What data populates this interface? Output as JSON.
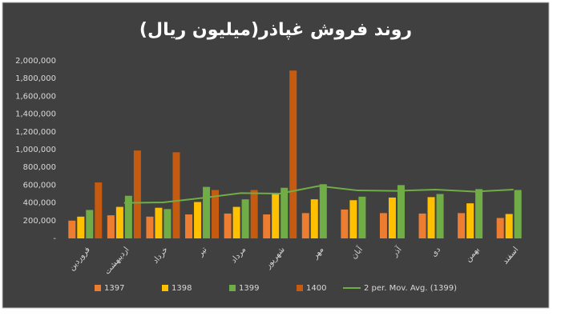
{
  "chart_data": {
    "type": "bar",
    "title": "روند فروش غپاذر(میلیون ریال)",
    "categories": [
      "فروردین",
      "اردیبهشت",
      "خرداد",
      "تیر",
      "مرداد",
      "شهریور",
      "مهر",
      "آبان",
      "آذر",
      "دی",
      "بهمن",
      "اسفند"
    ],
    "series": [
      {
        "name": "1397",
        "color": "#ed7d31",
        "values": [
          200000,
          260000,
          245000,
          270000,
          280000,
          270000,
          285000,
          325000,
          285000,
          280000,
          285000,
          230000
        ]
      },
      {
        "name": "1398",
        "color": "#ffc000",
        "values": [
          245000,
          355000,
          345000,
          410000,
          355000,
          500000,
          440000,
          430000,
          460000,
          465000,
          395000,
          275000
        ]
      },
      {
        "name": "1399",
        "color": "#70ad47",
        "values": [
          320000,
          480000,
          330000,
          580000,
          440000,
          570000,
          610000,
          470000,
          600000,
          500000,
          555000,
          545000
        ]
      },
      {
        "name": "1400",
        "color": "#c55a11",
        "values": [
          630000,
          990000,
          970000,
          545000,
          545000,
          1890000,
          null,
          null,
          null,
          null,
          null,
          null
        ]
      },
      {
        "name": "2 per. Mov. Avg. (1399)",
        "color": "#70ad47",
        "type": "line",
        "values": [
          null,
          400000,
          405000,
          455000,
          510000,
          505000,
          590000,
          540000,
          535000,
          550000,
          527500,
          550000
        ]
      }
    ],
    "ylim": [
      0,
      2000000
    ],
    "yticks": [
      {
        "value": 0,
        "label": "-"
      },
      {
        "value": 200000,
        "label": "200,000"
      },
      {
        "value": 400000,
        "label": "400,000"
      },
      {
        "value": 600000,
        "label": "600,000"
      },
      {
        "value": 800000,
        "label": "800,000"
      },
      {
        "value": 1000000,
        "label": "1,000,000"
      },
      {
        "value": 1200000,
        "label": "1,200,000"
      },
      {
        "value": 1400000,
        "label": "1,400,000"
      },
      {
        "value": 1600000,
        "label": "1,600,000"
      },
      {
        "value": 1800000,
        "label": "1,800,000"
      },
      {
        "value": 2000000,
        "label": "2,000,000"
      }
    ],
    "grid": false,
    "legend": "bottom"
  }
}
